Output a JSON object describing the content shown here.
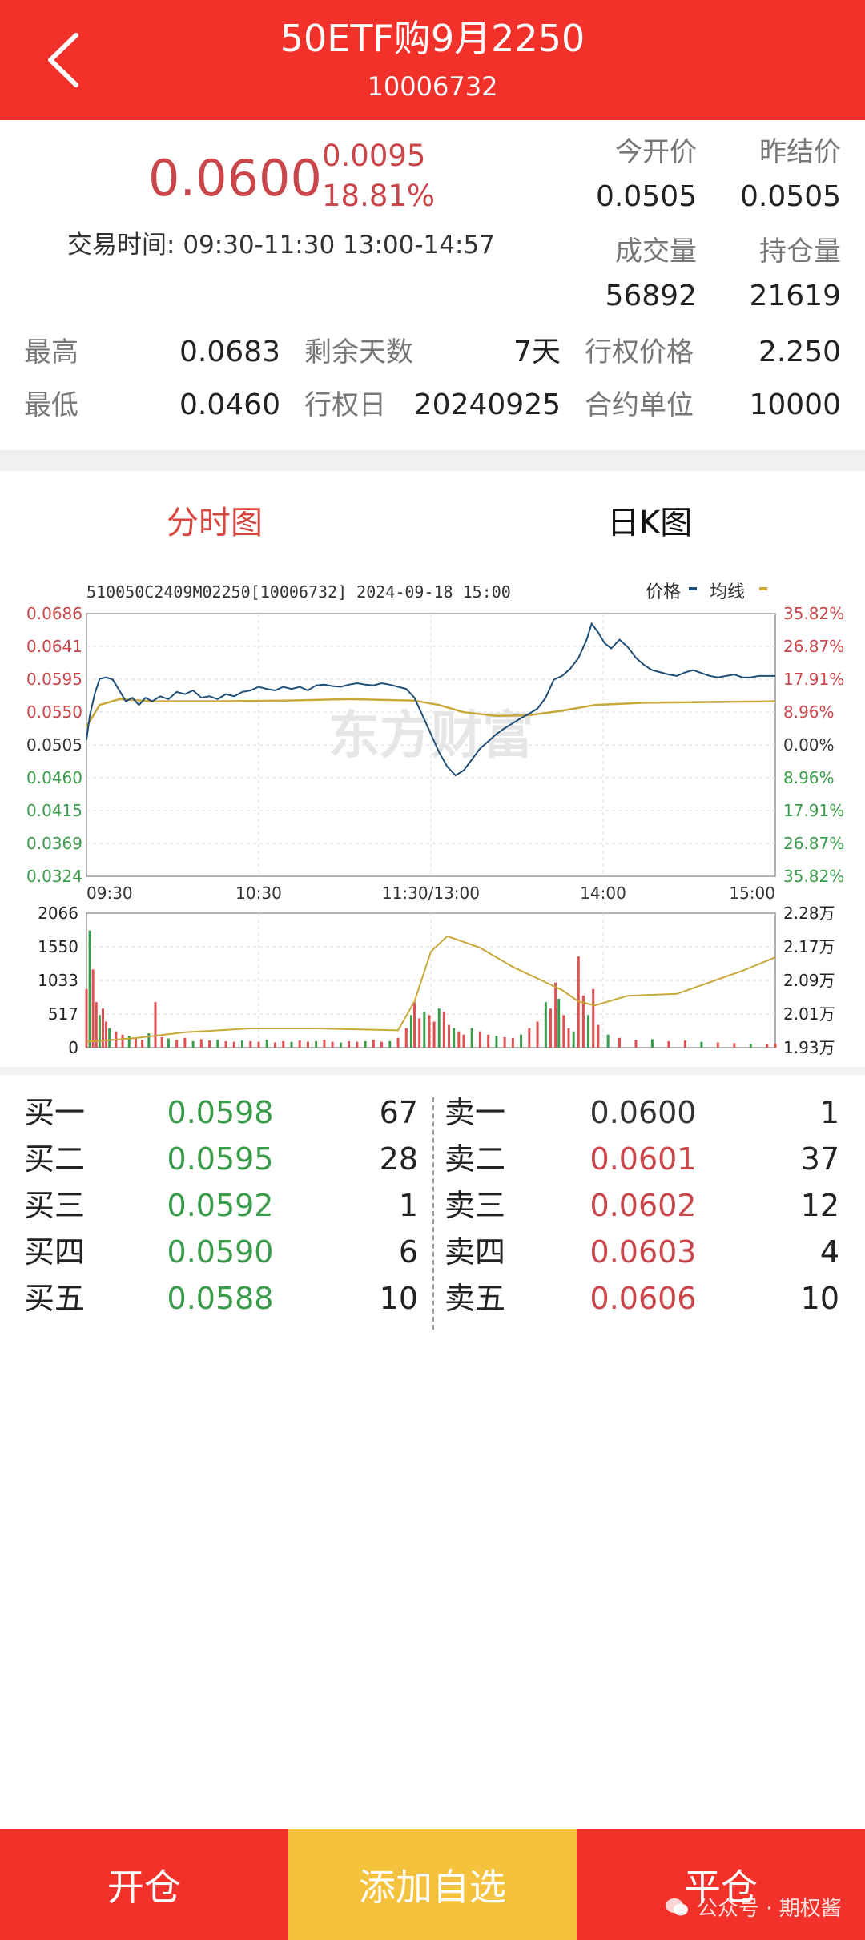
{
  "header": {
    "title": "50ETF购9月2250",
    "code": "10006732"
  },
  "quote": {
    "price": "0.0600",
    "change": "0.0095",
    "change_pct": "18.81%",
    "trade_time_label": "交易时间:",
    "trade_time_value": "09:30-11:30 13:00-14:57",
    "today_open_label": "今开价",
    "today_open_value": "0.0505",
    "prev_settle_label": "昨结价",
    "prev_settle_value": "0.0505",
    "volume_label": "成交量",
    "volume_value": "56892",
    "open_interest_label": "持仓量",
    "open_interest_value": "21619",
    "high_label": "最高",
    "high_value": "0.0683",
    "days_left_label": "剩余天数",
    "days_left_value": "7天",
    "strike_label": "行权价格",
    "strike_value": "2.250",
    "low_label": "最低",
    "low_value": "0.0460",
    "exercise_date_label": "行权日",
    "exercise_date_value": "20240925",
    "contract_unit_label": "合约单位",
    "contract_unit_value": "10000"
  },
  "tabs": [
    {
      "label": "分时图",
      "active": true
    },
    {
      "label": "日K图",
      "active": false
    }
  ],
  "chart_data": {
    "type": "line",
    "header_text": "510050C2409M02250[10006732] 2024-09-18 15:00",
    "legend": [
      {
        "name": "价格",
        "color": "#1f4e79"
      },
      {
        "name": "均线",
        "color": "#c8a838"
      }
    ],
    "watermark": "东方财富",
    "price_axis_left": [
      "0.0686",
      "0.0641",
      "0.0595",
      "0.0550",
      "0.0505",
      "0.0460",
      "0.0415",
      "0.0369",
      "0.0324"
    ],
    "price_axis_right": [
      "35.82%",
      "26.87%",
      "17.91%",
      "8.96%",
      "0.00%",
      "8.96%",
      "17.91%",
      "26.87%",
      "35.82%"
    ],
    "ylim": [
      0.0324,
      0.0686
    ],
    "time_ticks": [
      "09:30",
      "10:30",
      "11:30/13:00",
      "14:00",
      "15:00"
    ],
    "price_series": [
      [
        0,
        0.0512
      ],
      [
        2,
        0.0545
      ],
      [
        5,
        0.0575
      ],
      [
        8,
        0.0596
      ],
      [
        12,
        0.0598
      ],
      [
        16,
        0.0595
      ],
      [
        20,
        0.058
      ],
      [
        24,
        0.0565
      ],
      [
        28,
        0.057
      ],
      [
        32,
        0.056
      ],
      [
        36,
        0.057
      ],
      [
        40,
        0.0565
      ],
      [
        45,
        0.0572
      ],
      [
        50,
        0.0568
      ],
      [
        55,
        0.0578
      ],
      [
        60,
        0.0575
      ],
      [
        65,
        0.058
      ],
      [
        70,
        0.057
      ],
      [
        75,
        0.0572
      ],
      [
        80,
        0.0568
      ],
      [
        85,
        0.0575
      ],
      [
        90,
        0.0572
      ],
      [
        95,
        0.0578
      ],
      [
        100,
        0.058
      ],
      [
        105,
        0.0585
      ],
      [
        110,
        0.0582
      ],
      [
        115,
        0.058
      ],
      [
        120,
        0.0585
      ],
      [
        125,
        0.0582
      ],
      [
        130,
        0.0585
      ],
      [
        135,
        0.058
      ],
      [
        140,
        0.0587
      ],
      [
        145,
        0.0588
      ],
      [
        150,
        0.0586
      ],
      [
        155,
        0.0585
      ],
      [
        160,
        0.0588
      ],
      [
        165,
        0.059
      ],
      [
        170,
        0.0588
      ],
      [
        175,
        0.0587
      ],
      [
        180,
        0.059
      ],
      [
        185,
        0.0588
      ],
      [
        190,
        0.0585
      ],
      [
        195,
        0.0582
      ],
      [
        200,
        0.057
      ],
      [
        205,
        0.0545
      ],
      [
        210,
        0.052
      ],
      [
        215,
        0.0495
      ],
      [
        220,
        0.0475
      ],
      [
        225,
        0.0463
      ],
      [
        230,
        0.047
      ],
      [
        235,
        0.0485
      ],
      [
        240,
        0.05
      ],
      [
        245,
        0.051
      ],
      [
        250,
        0.052
      ],
      [
        255,
        0.0528
      ],
      [
        260,
        0.0535
      ],
      [
        265,
        0.0542
      ],
      [
        270,
        0.0548
      ],
      [
        275,
        0.0555
      ],
      [
        280,
        0.057
      ],
      [
        285,
        0.0595
      ],
      [
        290,
        0.06
      ],
      [
        295,
        0.061
      ],
      [
        300,
        0.0625
      ],
      [
        305,
        0.065
      ],
      [
        308,
        0.0672
      ],
      [
        312,
        0.066
      ],
      [
        316,
        0.0645
      ],
      [
        320,
        0.0638
      ],
      [
        325,
        0.065
      ],
      [
        330,
        0.064
      ],
      [
        335,
        0.0625
      ],
      [
        340,
        0.0615
      ],
      [
        345,
        0.0608
      ],
      [
        350,
        0.0605
      ],
      [
        355,
        0.0602
      ],
      [
        360,
        0.06
      ],
      [
        365,
        0.0605
      ],
      [
        370,
        0.0608
      ],
      [
        375,
        0.0604
      ],
      [
        380,
        0.06
      ],
      [
        385,
        0.0598
      ],
      [
        390,
        0.06
      ],
      [
        395,
        0.0602
      ],
      [
        400,
        0.0598
      ],
      [
        405,
        0.0598
      ],
      [
        410,
        0.06
      ],
      [
        415,
        0.06
      ],
      [
        420,
        0.06
      ]
    ],
    "avg_series": [
      [
        0,
        0.053
      ],
      [
        8,
        0.056
      ],
      [
        20,
        0.0568
      ],
      [
        40,
        0.0565
      ],
      [
        80,
        0.0565
      ],
      [
        120,
        0.0566
      ],
      [
        160,
        0.0568
      ],
      [
        200,
        0.0566
      ],
      [
        215,
        0.056
      ],
      [
        230,
        0.055
      ],
      [
        250,
        0.0545
      ],
      [
        270,
        0.0546
      ],
      [
        290,
        0.0552
      ],
      [
        310,
        0.056
      ],
      [
        340,
        0.0563
      ],
      [
        380,
        0.0564
      ],
      [
        420,
        0.0565
      ]
    ],
    "volume_axis_left": [
      "2066",
      "1550",
      "1033",
      "517",
      "0"
    ],
    "volume_axis_right": [
      "2.28万",
      "2.17万",
      "2.09万",
      "2.01万",
      "1.93万"
    ],
    "volume_ylim": [
      0,
      2066
    ],
    "open_interest_ylim": [
      19300,
      22800
    ],
    "open_interest_series": [
      [
        0,
        19450
      ],
      [
        30,
        19550
      ],
      [
        60,
        19700
      ],
      [
        100,
        19800
      ],
      [
        140,
        19800
      ],
      [
        190,
        19750
      ],
      [
        200,
        20500
      ],
      [
        210,
        21800
      ],
      [
        220,
        22200
      ],
      [
        240,
        21900
      ],
      [
        260,
        21400
      ],
      [
        280,
        21000
      ],
      [
        290,
        20800
      ],
      [
        300,
        20500
      ],
      [
        310,
        20400
      ],
      [
        330,
        20650
      ],
      [
        360,
        20700
      ],
      [
        400,
        21300
      ],
      [
        420,
        21650
      ]
    ],
    "volume_bars": [
      [
        0,
        900
      ],
      [
        2,
        1800
      ],
      [
        4,
        1200
      ],
      [
        6,
        700
      ],
      [
        8,
        500
      ],
      [
        10,
        600
      ],
      [
        12,
        400
      ],
      [
        14,
        300
      ],
      [
        18,
        250
      ],
      [
        22,
        200
      ],
      [
        26,
        180
      ],
      [
        30,
        150
      ],
      [
        34,
        120
      ],
      [
        38,
        220
      ],
      [
        42,
        700
      ],
      [
        46,
        160
      ],
      [
        50,
        140
      ],
      [
        55,
        120
      ],
      [
        60,
        150
      ],
      [
        65,
        100
      ],
      [
        70,
        130
      ],
      [
        75,
        110
      ],
      [
        80,
        120
      ],
      [
        85,
        100
      ],
      [
        90,
        90
      ],
      [
        95,
        110
      ],
      [
        100,
        100
      ],
      [
        105,
        90
      ],
      [
        110,
        120
      ],
      [
        115,
        80
      ],
      [
        120,
        100
      ],
      [
        125,
        90
      ],
      [
        130,
        110
      ],
      [
        135,
        90
      ],
      [
        140,
        100
      ],
      [
        145,
        120
      ],
      [
        150,
        90
      ],
      [
        155,
        80
      ],
      [
        160,
        100
      ],
      [
        165,
        90
      ],
      [
        170,
        100
      ],
      [
        175,
        120
      ],
      [
        180,
        90
      ],
      [
        185,
        100
      ],
      [
        190,
        150
      ],
      [
        195,
        300
      ],
      [
        198,
        500
      ],
      [
        200,
        700
      ],
      [
        203,
        450
      ],
      [
        206,
        550
      ],
      [
        209,
        500
      ],
      [
        212,
        400
      ],
      [
        215,
        600
      ],
      [
        218,
        550
      ],
      [
        221,
        350
      ],
      [
        224,
        300
      ],
      [
        227,
        250
      ],
      [
        230,
        200
      ],
      [
        235,
        300
      ],
      [
        240,
        250
      ],
      [
        245,
        200
      ],
      [
        250,
        180
      ],
      [
        255,
        160
      ],
      [
        260,
        150
      ],
      [
        265,
        200
      ],
      [
        270,
        300
      ],
      [
        275,
        400
      ],
      [
        280,
        700
      ],
      [
        283,
        600
      ],
      [
        286,
        1000
      ],
      [
        288,
        750
      ],
      [
        291,
        500
      ],
      [
        294,
        300
      ],
      [
        297,
        250
      ],
      [
        300,
        1400
      ],
      [
        303,
        800
      ],
      [
        306,
        500
      ],
      [
        309,
        900
      ],
      [
        312,
        350
      ],
      [
        318,
        200
      ],
      [
        325,
        150
      ],
      [
        335,
        120
      ],
      [
        345,
        130
      ],
      [
        355,
        100
      ],
      [
        365,
        110
      ],
      [
        375,
        90
      ],
      [
        385,
        80
      ],
      [
        395,
        70
      ],
      [
        405,
        60
      ],
      [
        415,
        50
      ],
      [
        420,
        60
      ]
    ]
  },
  "order_book": {
    "bids": [
      {
        "label": "买一",
        "price": "0.0598",
        "qty": "67"
      },
      {
        "label": "买二",
        "price": "0.0595",
        "qty": "28"
      },
      {
        "label": "买三",
        "price": "0.0592",
        "qty": "1"
      },
      {
        "label": "买四",
        "price": "0.0590",
        "qty": "6"
      },
      {
        "label": "买五",
        "price": "0.0588",
        "qty": "10"
      }
    ],
    "asks": [
      {
        "label": "卖一",
        "price": "0.0600",
        "qty": "1"
      },
      {
        "label": "卖二",
        "price": "0.0601",
        "qty": "37"
      },
      {
        "label": "卖三",
        "price": "0.0602",
        "qty": "12"
      },
      {
        "label": "卖四",
        "price": "0.0603",
        "qty": "4"
      },
      {
        "label": "卖五",
        "price": "0.0606",
        "qty": "10"
      }
    ]
  },
  "bottom_bar": {
    "open_label": "开仓",
    "watchlist_label": "添加自选",
    "close_label": "平仓"
  },
  "watermark": "公众号 · 期权酱",
  "colors": {
    "brand_red": "#f2312b",
    "watchlist_yellow": "#f4c23d",
    "up_red": "#c9474b",
    "down_green": "#3a9c4a",
    "price_line": "#1f4e79",
    "avg_line": "#c8a838"
  }
}
